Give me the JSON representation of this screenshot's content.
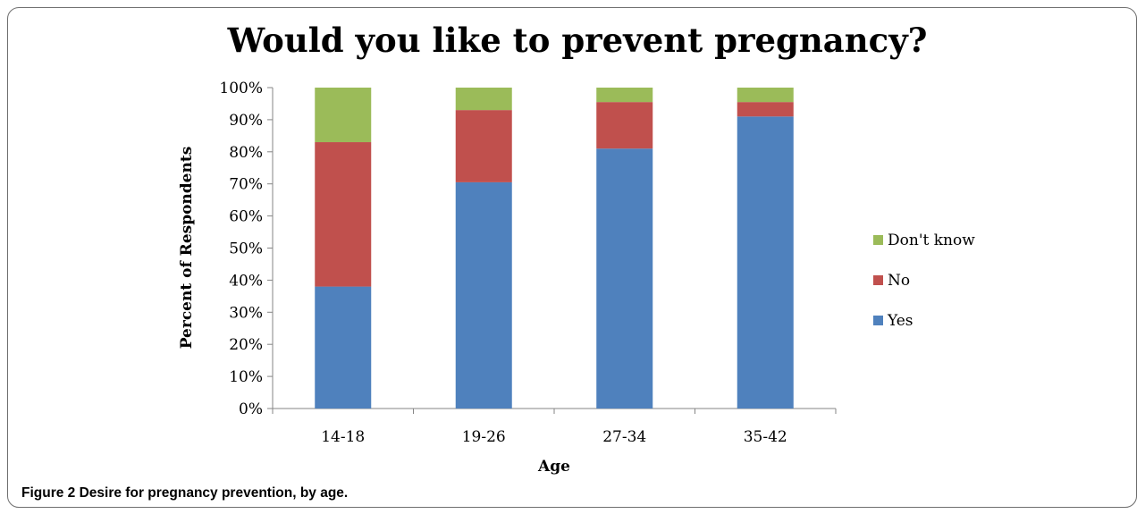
{
  "chart_data": {
    "type": "bar",
    "stacked": true,
    "title": "Would you like to prevent pregnancy?",
    "xlabel": "Age",
    "ylabel": "Percent of Respondents",
    "categories": [
      "14-18",
      "19-26",
      "27-34",
      "35-42"
    ],
    "ylim": [
      0,
      100
    ],
    "yticks": [
      "0%",
      "10%",
      "20%",
      "30%",
      "40%",
      "50%",
      "60%",
      "70%",
      "80%",
      "90%",
      "100%"
    ],
    "series": [
      {
        "name": "Yes",
        "values": [
          38,
          70.5,
          81,
          91
        ],
        "color": "#4f81bd"
      },
      {
        "name": "No",
        "values": [
          45,
          22.5,
          14.5,
          4.5
        ],
        "color": "#c0504d"
      },
      {
        "name": "Don't know",
        "values": [
          17,
          7,
          4.5,
          4.5
        ],
        "color": "#9bbb59"
      }
    ],
    "legend_position": "right",
    "grid": false
  },
  "caption": {
    "label": "Figure 2",
    "text": "Desire for pregnancy prevention, by age."
  }
}
